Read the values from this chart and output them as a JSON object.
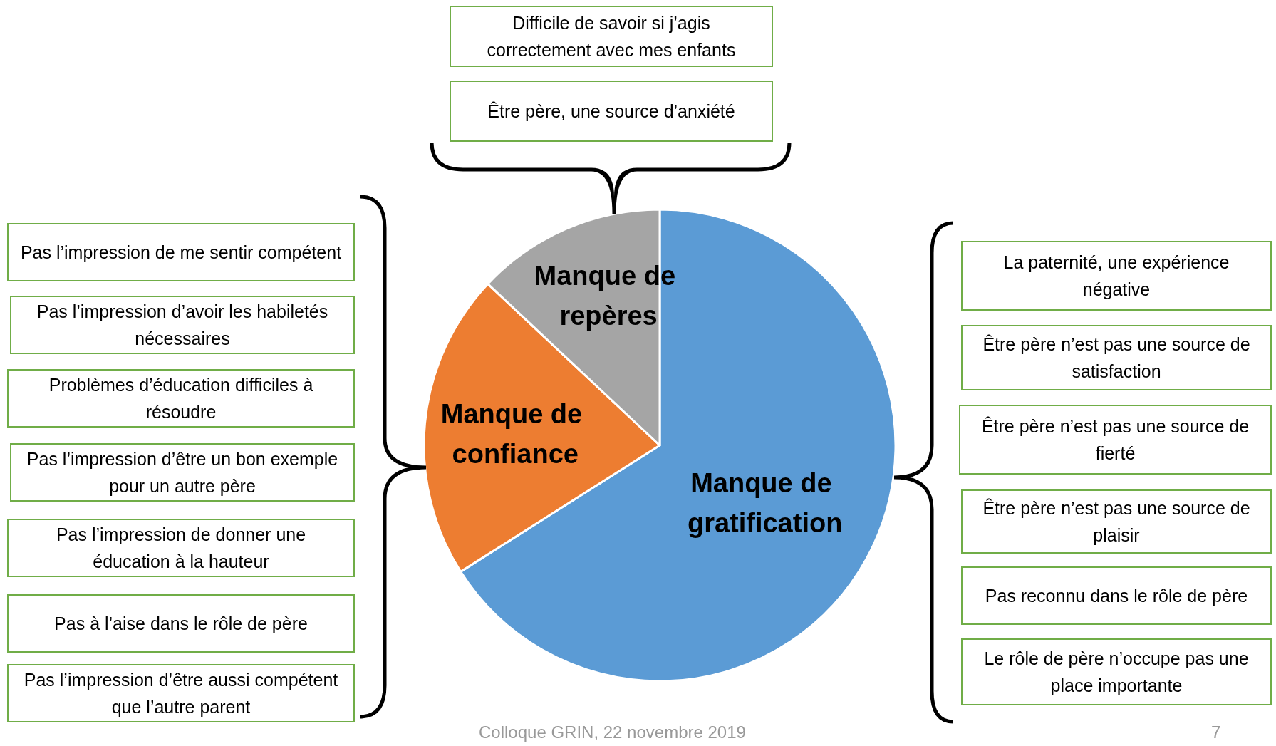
{
  "chart_data": {
    "type": "pie",
    "categories": [
      "Manque de gratification",
      "Manque de confiance",
      "Manque de repères"
    ],
    "values": [
      66,
      21,
      13
    ],
    "colors": [
      "#5b9bd5",
      "#ed7d31",
      "#a5a5a5"
    ],
    "annotations": [
      "Difficile de savoir si j’agis correctement avec mes enfants",
      "Être père, une source d’anxiété",
      "Pas l’impression de me sentir compétent",
      "Pas l’impression d’avoir les habiletés nécessaires",
      "Problèmes d’éducation difficiles à résoudre",
      "Pas l’impression d’être un bon exemple pour un autre père",
      "Pas l’impression de donner une éducation à la hauteur",
      "Pas à l’aise dans le rôle de père",
      "Pas l’impression d’être aussi compétent que l’autre parent",
      "La paternité, une expérience négative",
      "Être père n’est pas une source de satisfaction",
      "Être père n’est pas une source de fierté",
      "Être père n’est pas une source de plaisir",
      "Pas reconnu dans le rôle de père",
      "Le rôle de père n’occupe pas une place importante",
      "Colloque GRIN, 22 novembre 2019",
      "7"
    ]
  }
}
